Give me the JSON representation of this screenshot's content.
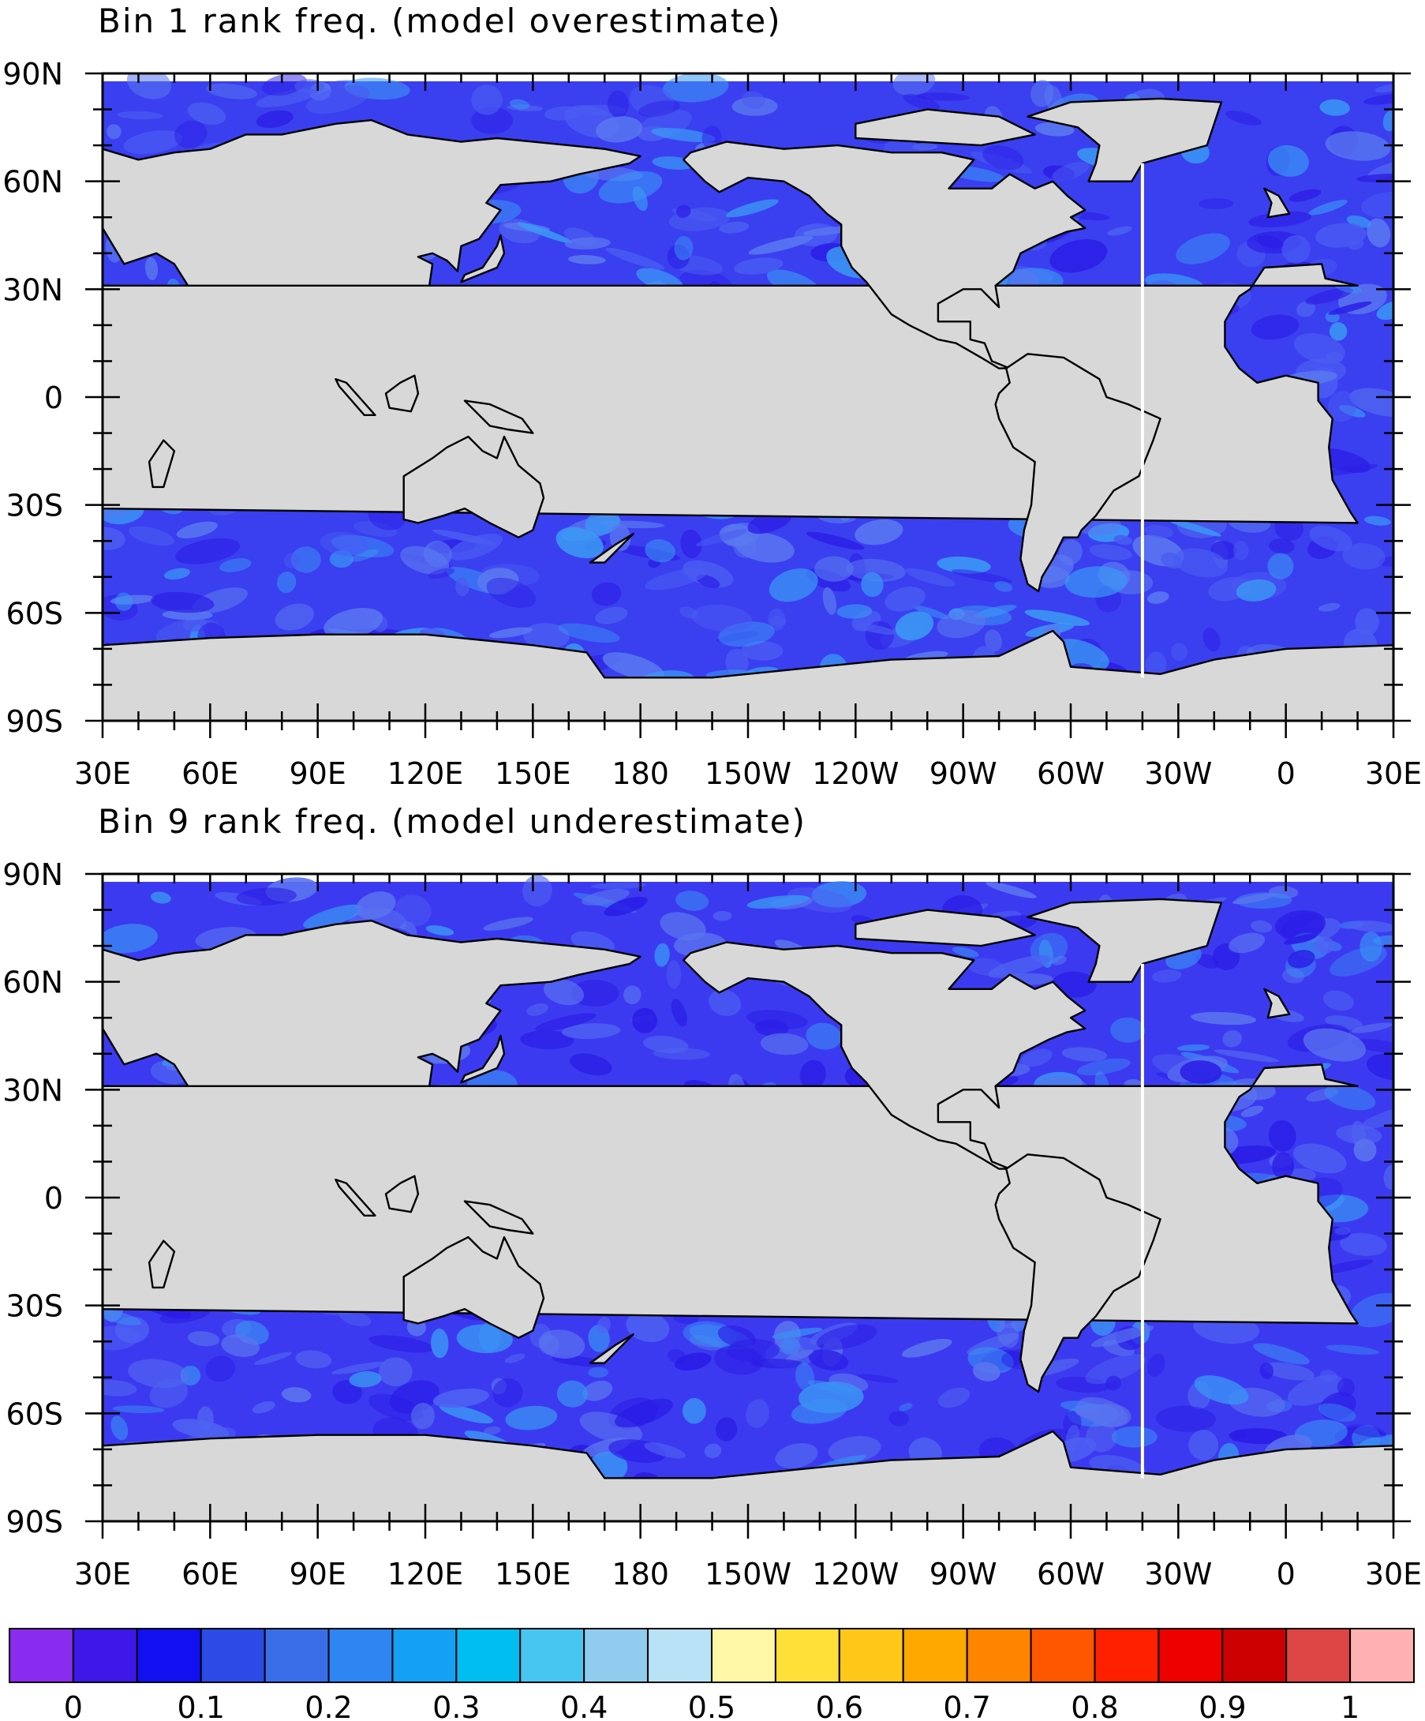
{
  "panels": [
    {
      "title": "Bin 1 rank freq. (model overestimate)",
      "ocean_color": "#3a3ff0",
      "patch_colors": [
        "#2c1ee6",
        "#4a5cf2",
        "#3b9af5",
        "#5a78f0"
      ],
      "patch_seed": 11
    },
    {
      "title": "Bin 9 rank freq. (model underestimate)",
      "ocean_color": "#3c3af0",
      "patch_colors": [
        "#2a1ce6",
        "#4e62f2",
        "#3b8ff4",
        "#5a74ef"
      ],
      "patch_seed": 29
    }
  ],
  "axes": {
    "lat_labels": [
      "90N",
      "60N",
      "30N",
      "0",
      "30S",
      "60S",
      "90S"
    ],
    "lon_labels": [
      "30E",
      "60E",
      "90E",
      "120E",
      "150E",
      "180",
      "150W",
      "120W",
      "90W",
      "60W",
      "30W",
      "0",
      "30E"
    ]
  },
  "land_color": "#d8d8d8",
  "colorbar": {
    "colors": [
      "#8a2bf0",
      "#3d18e8",
      "#1010f0",
      "#2b4ae6",
      "#3a6ee8",
      "#2e86f2",
      "#14a0f5",
      "#00bef0",
      "#48c6f2",
      "#90ccee",
      "#b8e2f6",
      "#fff6a6",
      "#ffe038",
      "#ffc818",
      "#ffa800",
      "#ff8400",
      "#ff5600",
      "#ff2000",
      "#ee0000",
      "#cc0000",
      "#dd4444",
      "#ffb0b0"
    ],
    "labels": [
      "0",
      "0.1",
      "0.2",
      "0.3",
      "0.4",
      "0.5",
      "0.6",
      "0.7",
      "0.8",
      "0.9",
      "1"
    ]
  }
}
